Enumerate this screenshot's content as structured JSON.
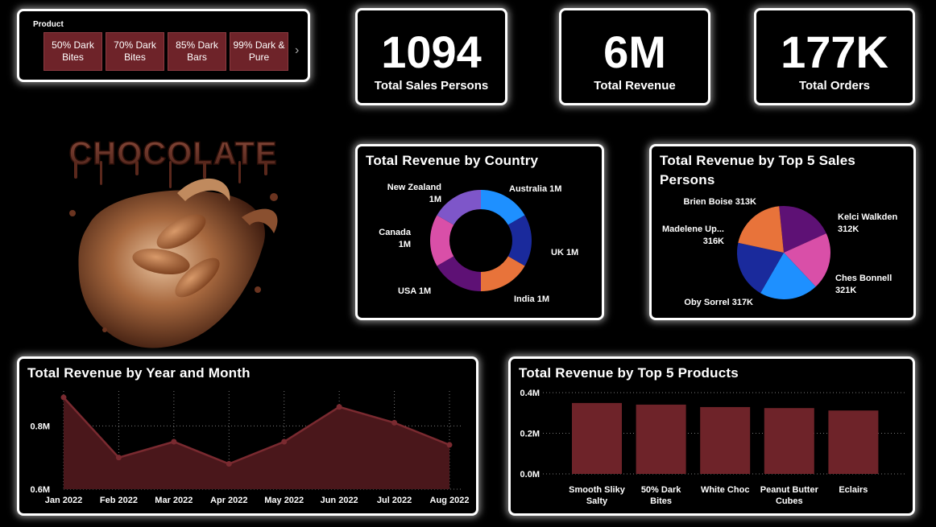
{
  "slicer": {
    "label": "Product",
    "options": [
      "50% Dark Bites",
      "70% Dark Bites",
      "85% Dark Bars",
      "99% Dark & Pure"
    ],
    "scroll_icon": "chevron-right-icon"
  },
  "kpis": [
    {
      "value": "1094",
      "label": "Total Sales Persons"
    },
    {
      "value": "6M",
      "label": "Total Revenue"
    },
    {
      "value": "177K",
      "label": "Total Orders"
    }
  ],
  "hero": {
    "text": "CHOCOLATE"
  },
  "colors": {
    "maroon": "#6e2329",
    "area": "#4a171b",
    "line": "#7a2a30",
    "slices": [
      "#1e90ff",
      "#1a2a9c",
      "#e8733a",
      "#5e1175",
      "#d94fa8",
      "#7e56c9"
    ]
  },
  "chart_data": [
    {
      "type": "pie",
      "variant": "donut",
      "title": "Total Revenue by Country",
      "labels": [
        "Australia",
        "UK",
        "India",
        "USA",
        "Canada",
        "New Zealand"
      ],
      "values": [
        1,
        1,
        1,
        1,
        1,
        1
      ],
      "data_labels": [
        "Australia 1M",
        "UK 1M",
        "India 1M",
        "USA 1M",
        "Canada 1M",
        "New Zealand 1M"
      ]
    },
    {
      "type": "pie",
      "title": "Total Revenue by Top 5 Sales Persons",
      "labels": [
        "Kelci Walkden",
        "Ches Bonnell",
        "Oby Sorrel",
        "Madelene Up...",
        "Brien Boise"
      ],
      "values": [
        312,
        321,
        317,
        316,
        313
      ],
      "data_labels": [
        "Kelci Walkden 312K",
        "Ches Bonnell 321K",
        "Oby Sorrel 317K",
        "Madelene Up... 316K",
        "Brien Boise 313K"
      ]
    },
    {
      "type": "area",
      "title": "Total Revenue by Year and Month",
      "categories": [
        "Jan 2022",
        "Feb 2022",
        "Mar 2022",
        "Apr 2022",
        "May 2022",
        "Jun 2022",
        "Jul 2022",
        "Aug 2022"
      ],
      "values": [
        0.89,
        0.7,
        0.75,
        0.68,
        0.75,
        0.86,
        0.81,
        0.74
      ],
      "y_ticks": [
        "0.8M",
        "0.6M"
      ],
      "ylim": [
        0.6,
        0.9
      ],
      "grid": true
    },
    {
      "type": "bar",
      "title": "Total Revenue by Top 5 Products",
      "categories": [
        "Smooth Sliky Salty",
        "50% Dark Bites",
        "White Choc",
        "Peanut Butter Cubes",
        "Eclairs"
      ],
      "values": [
        0.349,
        0.341,
        0.329,
        0.324,
        0.312
      ],
      "y_ticks": [
        "0.4M",
        "0.2M",
        "0.0M"
      ],
      "ylim": [
        0,
        0.4
      ],
      "grid": true
    }
  ]
}
